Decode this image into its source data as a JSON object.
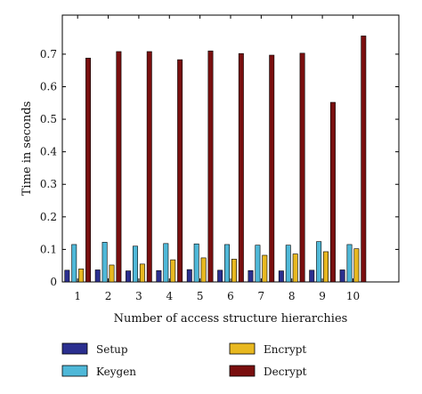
{
  "chart_data": {
    "type": "bar",
    "title": "",
    "xlabel": "Number of access structure hierarchies",
    "ylabel": "Time in seconds",
    "categories": [
      "1",
      "2",
      "3",
      "4",
      "5",
      "6",
      "7",
      "8",
      "9",
      "10"
    ],
    "xlim": [
      0.5,
      11.5
    ],
    "ylim": [
      0,
      0.82
    ],
    "yticks": [
      0,
      0.1,
      0.2,
      0.3,
      0.4,
      0.5,
      0.6,
      0.7
    ],
    "ytick_labels": [
      "0",
      "0.1",
      "0.2",
      "0.3",
      "0.4",
      "0.5",
      "0.6",
      "0.7"
    ],
    "grid": false,
    "legend_position": "bottom",
    "series": [
      {
        "name": "Setup",
        "color": "#2b2f8f",
        "values": [
          0.036,
          0.037,
          0.034,
          0.035,
          0.038,
          0.036,
          0.035,
          0.034,
          0.036,
          0.037
        ]
      },
      {
        "name": "Keygen",
        "color": "#4fb8d8",
        "values": [
          0.115,
          0.122,
          0.11,
          0.118,
          0.117,
          0.115,
          0.113,
          0.113,
          0.124,
          0.115
        ]
      },
      {
        "name": "Encrypt",
        "color": "#e8b820",
        "values": [
          0.04,
          0.052,
          0.055,
          0.068,
          0.074,
          0.07,
          0.082,
          0.086,
          0.093,
          0.102
        ]
      },
      {
        "name": "Decrypt",
        "color": "#7a0f0f",
        "values": [
          0.688,
          0.708,
          0.708,
          0.683,
          0.71,
          0.702,
          0.697,
          0.703,
          0.552,
          0.756
        ]
      }
    ]
  }
}
